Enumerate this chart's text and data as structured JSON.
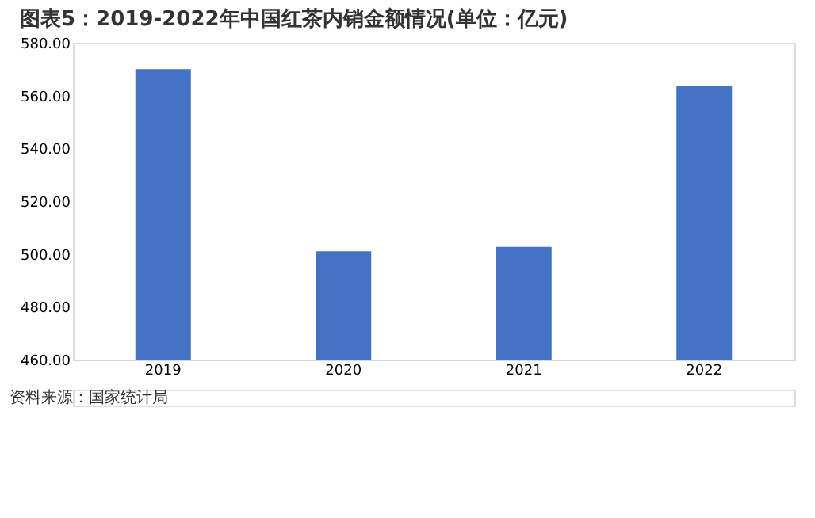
{
  "chart_data": {
    "type": "bar",
    "title": "图表5：2019-2022年中国红茶内销金额情况(单位：亿元)",
    "categories": [
      "2019",
      "2020",
      "2021",
      "2022"
    ],
    "values": [
      570,
      501,
      502.7,
      563.5
    ],
    "color": "#4472c4",
    "ylim": [
      460,
      580
    ],
    "yticks": [
      {
        "value": 460,
        "label": "460.00"
      },
      {
        "value": 480,
        "label": "480.00"
      },
      {
        "value": 500,
        "label": "500.00"
      },
      {
        "value": 520,
        "label": "520.00"
      },
      {
        "value": 540,
        "label": "540.00"
      },
      {
        "value": 560,
        "label": "560.00"
      },
      {
        "value": 580,
        "label": "580.00"
      }
    ],
    "grid": false,
    "annotations": [
      "资料来源：国家统计局"
    ]
  }
}
